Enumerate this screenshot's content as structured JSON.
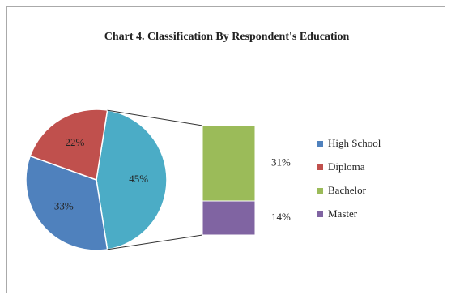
{
  "chart_data": {
    "type": "pie",
    "title": "Chart 4. Classification By Respondent's Education",
    "categories": [
      "High School",
      "Diploma",
      "Bachelor",
      "Master"
    ],
    "values": [
      33,
      22,
      31,
      14
    ],
    "value_labels": [
      "33%",
      "22%",
      "31%",
      "14%"
    ],
    "colors": [
      "#4f81bd",
      "#c0504d",
      "#9bbb59",
      "#8064a2"
    ],
    "pie_count": 2,
    "other_value": 45,
    "other_value_label": "45%",
    "other_color": "#4bacc6"
  }
}
